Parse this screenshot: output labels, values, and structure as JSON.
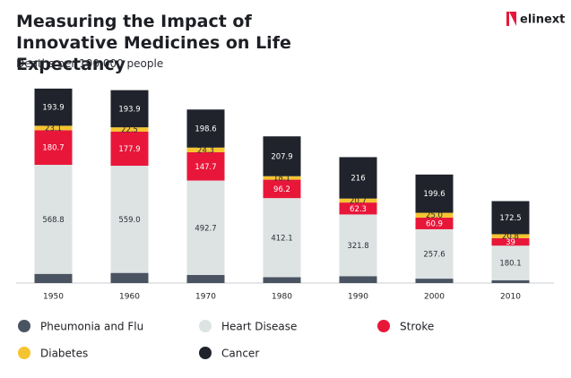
{
  "chart_data": {
    "type": "stacked_bar",
    "title": "Measuring the Impact of Innovative Medicines on Life Expectancy",
    "subtitle": "Deaths per 100,000 people",
    "logo": "elinext",
    "categories": [
      "1950",
      "1960",
      "1970",
      "1980",
      "1990",
      "2000",
      "2010"
    ],
    "ylim": [
      0,
      1000
    ],
    "series": [
      {
        "name": "Pheumonia and Flu",
        "color": "#4a5361",
        "values": [
          48,
          53,
          42,
          31,
          36,
          23,
          15
        ]
      },
      {
        "name": "Heart Disease",
        "color": "#dde3e3",
        "values": [
          568.8,
          559.0,
          492.7,
          412.1,
          321.8,
          257.6,
          180.1
        ],
        "value_labels": [
          "568.8",
          "559.0",
          "492.7",
          "412.1",
          "321.8",
          "257.6",
          "180.1"
        ]
      },
      {
        "name": "Stroke",
        "color": "#e8173a",
        "values": [
          180.7,
          177.9,
          147.7,
          96.2,
          62.3,
          60.9,
          39
        ]
      },
      {
        "name": "Diabetes",
        "color": "#f5c431",
        "values": [
          23.1,
          22.5,
          24.3,
          18.1,
          20.7,
          25.0,
          20.8
        ],
        "value_labels": [
          "23.1",
          "22.5",
          "24.3",
          "18.1",
          "20.7",
          "25.0",
          "20.8"
        ]
      },
      {
        "name": "Cancer",
        "color": "#20232b",
        "values": [
          193.9,
          193.9,
          198.6,
          207.9,
          216,
          199.6,
          172.5
        ]
      }
    ]
  }
}
